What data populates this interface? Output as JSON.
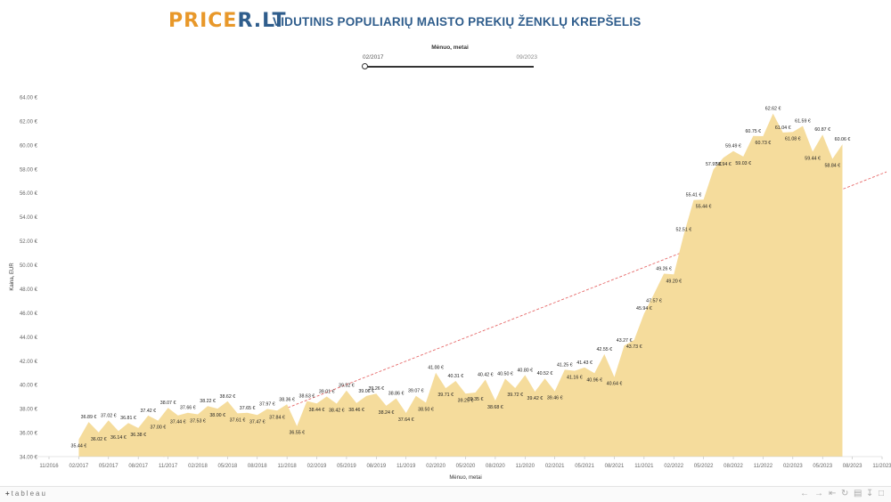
{
  "header": {
    "logo_part1": "PRICE",
    "logo_part2": "R.LT",
    "title": "VIDUTINIS POPULIARIŲ MAISTO PREKIŲ ŽENKLŲ KREPŠELIS"
  },
  "filter": {
    "title": "Mėnuo, metai",
    "start_value": "02/2017",
    "end_value": "09/2023"
  },
  "footer": {
    "logo_text": "tableau",
    "icon_names": [
      "tableau-plus-icon",
      "undo-icon",
      "redo-icon",
      "revert-icon",
      "refresh-icon",
      "share-icon",
      "download-icon",
      "fullscreen-icon"
    ]
  },
  "colors": {
    "area_fill": "#f5dc9c",
    "trendline": "#e66a6a",
    "logo_orange": "#e8982a",
    "logo_blue": "#2f5d8c",
    "title_blue": "#2f5d8c"
  },
  "chart_data": {
    "type": "area",
    "xlabel": "Mėnuo, metai",
    "ylabel": "Kaina, EUR",
    "ylim": [
      34,
      64
    ],
    "y_ticks": [
      "34.00 €",
      "36.00 €",
      "38.00 €",
      "40.00 €",
      "42.00 €",
      "44.00 €",
      "46.00 €",
      "48.00 €",
      "50.00 €",
      "52.00 €",
      "54.00 €",
      "56.00 €",
      "58.00 €",
      "60.00 €",
      "62.00 €",
      "64.00 €"
    ],
    "x_ticks": [
      "11/2016",
      "02/2017",
      "05/2017",
      "08/2017",
      "11/2017",
      "02/2018",
      "05/2018",
      "08/2018",
      "11/2018",
      "02/2019",
      "05/2019",
      "08/2019",
      "11/2019",
      "02/2020",
      "05/2020",
      "08/2020",
      "11/2020",
      "02/2021",
      "05/2021",
      "08/2021",
      "11/2021",
      "02/2022",
      "05/2022",
      "08/2022",
      "11/2022",
      "02/2023",
      "05/2023",
      "08/2023",
      "11/2023"
    ],
    "x_start": "02/2017",
    "x_end": "09/2023",
    "series": [
      {
        "values": [
          35.44,
          36.89,
          36.02,
          37.02,
          36.14,
          36.81,
          36.38,
          37.42,
          37.0,
          38.07,
          37.44,
          37.66,
          37.53,
          38.22,
          38.0,
          38.62,
          37.61,
          37.65,
          37.47,
          37.97,
          37.84,
          38.36,
          36.55,
          38.63,
          38.44,
          39.01,
          38.42,
          39.52,
          38.46,
          39.06,
          39.26,
          38.24,
          38.86,
          37.64,
          39.07,
          38.5,
          41.0,
          39.71,
          40.31,
          39.25,
          39.35,
          40.42,
          38.68,
          40.5,
          39.72,
          40.8,
          39.42,
          40.52,
          39.46,
          41.25,
          41.16,
          41.43,
          40.96,
          42.55,
          40.64,
          43.27,
          43.73,
          45.94,
          47.57,
          49.26,
          49.2,
          52.51,
          55.41,
          55.44,
          57.97,
          58.94,
          59.49,
          59.03,
          60.75,
          60.73,
          62.62,
          61.04,
          61.08,
          61.59,
          59.44,
          60.87,
          58.84,
          60.06
        ],
        "labels": [
          "35.44 €",
          "36.89 €",
          "36.02 €",
          "37.02 €",
          "36.14 €",
          "36.81 €",
          "36.38 €",
          "37.42 €",
          "37.00 €",
          "38.07 €",
          "37.44 €",
          "37.66 €",
          "37.53 €",
          "38.22 €",
          "38.00 €",
          "38.62 €",
          "37.61 €",
          "37.65 €",
          "37.47 €",
          "37.97 €",
          "37.84 €",
          "38.36 €",
          "36.55 €",
          "38.63 €",
          "38.44 €",
          "39.01 €",
          "38.42 €",
          "39.52 €",
          "38.46 €",
          "39.06 €",
          "39.26 €",
          "38.24 €",
          "38.86 €",
          "37.64 €",
          "39.07 €",
          "38.50 €",
          "41.00 €",
          "39.71 €",
          "40.31 €",
          "39.25 €",
          "39.35 €",
          "40.42 €",
          "38.68 €",
          "40.50 €",
          "39.72 €",
          "40.80 €",
          "39.42 €",
          "40.52 €",
          "39.46 €",
          "41.25 €",
          "41.16 €",
          "41.43 €",
          "40.96 €",
          "42.55 €",
          "40.64 €",
          "43.27 €",
          "43.73 €",
          "45.94 €",
          "47.57 €",
          "49.26 €",
          "49.20 €",
          "52.51 €",
          "55.41 €",
          "55.44 €",
          "57.97 €",
          "58.94 €",
          "59.49 €",
          "59.03 €",
          "60.75 €",
          "60.73 €",
          "62.62 €",
          "61.04 €",
          "61.08 €",
          "61.59 €",
          "59.44 €",
          "60.87 €",
          "58.84 €",
          "60.06 €"
        ],
        "label_side": [
          "below",
          "above",
          "below",
          "above",
          "below",
          "above",
          "below",
          "above",
          "below",
          "above",
          "below",
          "above",
          "below",
          "above",
          "below",
          "above",
          "below",
          "above",
          "below",
          "above",
          "below",
          "above",
          "below",
          "above",
          "below",
          "above",
          "below",
          "above",
          "below",
          "above",
          "above",
          "below",
          "above",
          "below",
          "above",
          "below",
          "above",
          "below",
          "above",
          "below",
          "below",
          "above",
          "below",
          "above",
          "below",
          "above",
          "below",
          "above",
          "below",
          "above",
          "below",
          "above",
          "below",
          "above",
          "below",
          "above",
          "below",
          "above",
          "below",
          "above",
          "below",
          "above",
          "above",
          "below",
          "above",
          "below",
          "above",
          "below",
          "above",
          "below",
          "above",
          "above",
          "below",
          "above",
          "below",
          "above",
          "below",
          "above"
        ]
      }
    ],
    "trendline": {
      "type": "linear",
      "color": "#e66a6a",
      "style": "dashed"
    },
    "grid": false,
    "legend": "none"
  }
}
